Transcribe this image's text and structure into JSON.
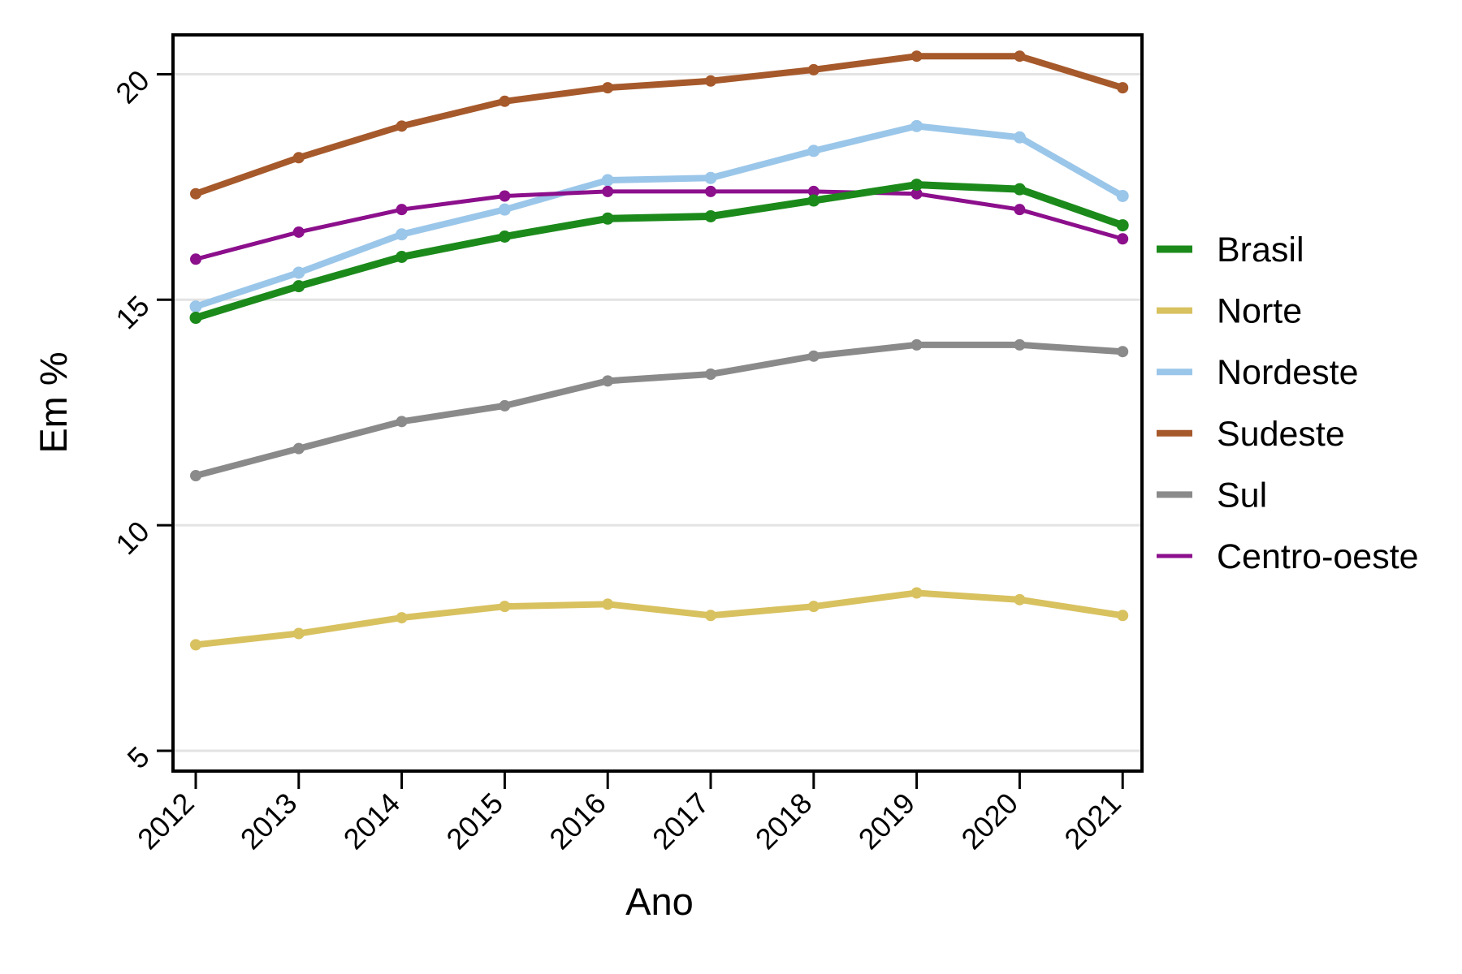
{
  "figure": {
    "background": "#ffffff",
    "frame_color": "#000000",
    "gridline_color": "#e3e3e3"
  },
  "chart_data": {
    "type": "line",
    "title": "",
    "xlabel": "Ano",
    "ylabel": "Em %",
    "x": [
      2012,
      2013,
      2014,
      2015,
      2016,
      2017,
      2018,
      2019,
      2020,
      2021
    ],
    "yticks": [
      5,
      10,
      15,
      20
    ],
    "ylim": [
      5,
      20.9
    ],
    "grid": "horizontal",
    "legend_position": "right",
    "series": [
      {
        "name": "Brasil",
        "color": "#1B8A1B",
        "line_width": 9,
        "marker_radius": 7.5,
        "values": [
          14.6,
          15.3,
          15.95,
          16.4,
          16.8,
          16.85,
          17.2,
          17.55,
          17.45,
          16.65
        ]
      },
      {
        "name": "Norte",
        "color": "#D8C15F",
        "line_width": 8,
        "marker_radius": 7,
        "values": [
          7.35,
          7.6,
          7.95,
          8.2,
          8.25,
          8.0,
          8.2,
          8.5,
          8.35,
          8.0
        ]
      },
      {
        "name": "Nordeste",
        "color": "#9AC6E9",
        "line_width": 8,
        "marker_radius": 7.5,
        "values": [
          14.85,
          15.6,
          16.45,
          17.0,
          17.65,
          17.7,
          18.3,
          18.85,
          18.6,
          17.3
        ]
      },
      {
        "name": "Sudeste",
        "color": "#A6592B",
        "line_width": 8,
        "marker_radius": 7,
        "values": [
          17.35,
          18.15,
          18.85,
          19.4,
          19.7,
          19.85,
          20.1,
          20.4,
          20.4,
          19.7
        ]
      },
      {
        "name": "Sul",
        "color": "#8A8A8A",
        "line_width": 8,
        "marker_radius": 7,
        "values": [
          11.1,
          11.7,
          12.3,
          12.65,
          13.2,
          13.35,
          13.75,
          14.0,
          14.0,
          13.85
        ]
      },
      {
        "name": "Centro-oeste",
        "color": "#8C0F8C",
        "line_width": 5,
        "marker_radius": 7,
        "values": [
          15.9,
          16.5,
          17.0,
          17.3,
          17.4,
          17.4,
          17.4,
          17.35,
          17.0,
          16.35
        ]
      }
    ]
  }
}
